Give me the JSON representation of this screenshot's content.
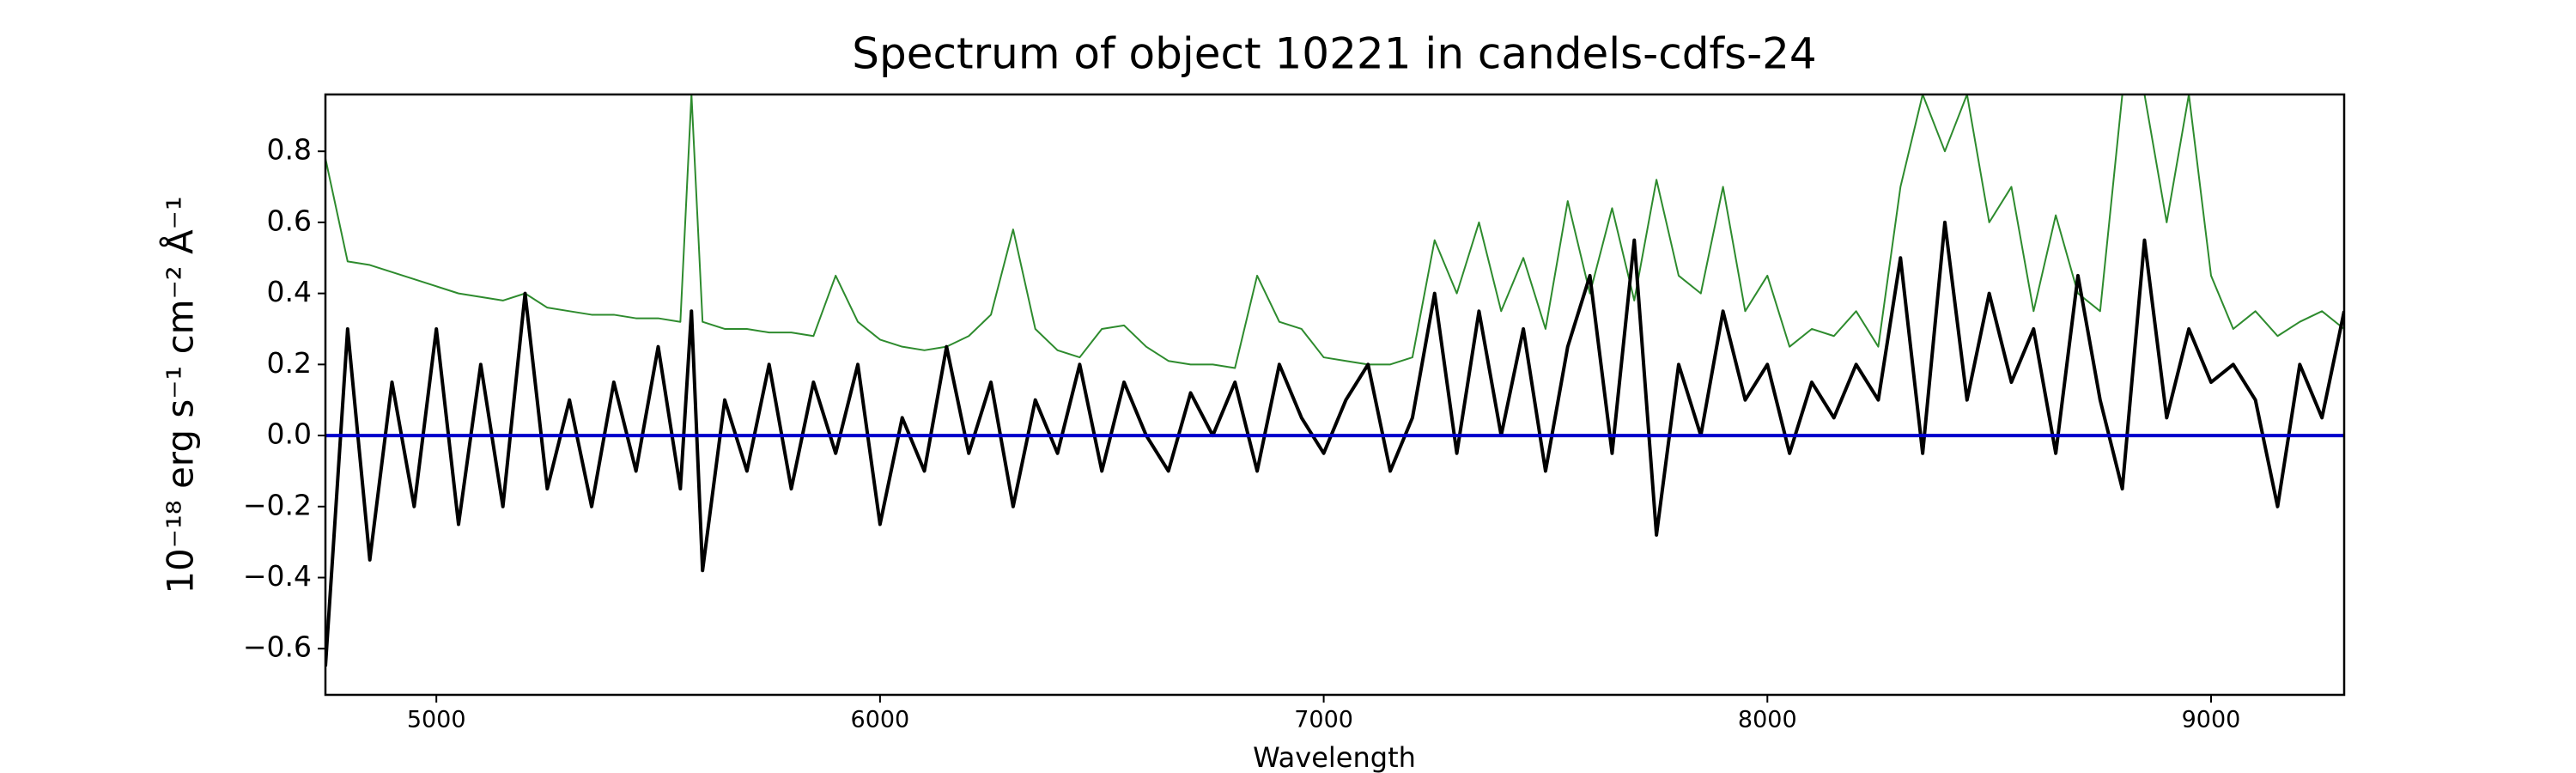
{
  "chart_data": {
    "type": "line",
    "title": "Spectrum of object 10221 in candels-cdfs-24",
    "xlabel": "Wavelength",
    "ylabel": "10⁻¹⁸ erg s⁻¹ cm⁻² Å⁻¹",
    "x": [
      4750,
      4800,
      4850,
      4900,
      4950,
      5000,
      5050,
      5100,
      5150,
      5200,
      5250,
      5300,
      5350,
      5400,
      5450,
      5500,
      5550,
      5575,
      5600,
      5650,
      5700,
      5750,
      5800,
      5850,
      5900,
      5950,
      6000,
      6050,
      6100,
      6150,
      6200,
      6250,
      6300,
      6350,
      6400,
      6450,
      6500,
      6550,
      6600,
      6650,
      6700,
      6750,
      6800,
      6850,
      6900,
      6950,
      7000,
      7050,
      7100,
      7150,
      7200,
      7250,
      7300,
      7350,
      7400,
      7450,
      7500,
      7550,
      7600,
      7650,
      7700,
      7750,
      7800,
      7850,
      7900,
      7950,
      8000,
      8050,
      8100,
      8150,
      8200,
      8250,
      8300,
      8350,
      8400,
      8450,
      8500,
      8550,
      8600,
      8650,
      8700,
      8750,
      8800,
      8850,
      8900,
      8950,
      9000,
      9050,
      9100,
      9150,
      9200,
      9250,
      9300
    ],
    "series": [
      {
        "color": "#2e8b2e",
        "width": 2,
        "values": [
          0.78,
          0.49,
          0.48,
          0.46,
          0.44,
          0.42,
          0.4,
          0.39,
          0.38,
          0.4,
          0.36,
          0.35,
          0.34,
          0.34,
          0.33,
          0.33,
          0.32,
          0.96,
          0.32,
          0.3,
          0.3,
          0.29,
          0.29,
          0.28,
          0.45,
          0.32,
          0.27,
          0.25,
          0.24,
          0.25,
          0.28,
          0.34,
          0.58,
          0.3,
          0.24,
          0.22,
          0.3,
          0.31,
          0.25,
          0.21,
          0.2,
          0.2,
          0.19,
          0.45,
          0.32,
          0.3,
          0.22,
          0.21,
          0.2,
          0.2,
          0.22,
          0.55,
          0.4,
          0.6,
          0.35,
          0.5,
          0.3,
          0.66,
          0.4,
          0.64,
          0.38,
          0.72,
          0.45,
          0.4,
          0.7,
          0.35,
          0.45,
          0.25,
          0.3,
          0.28,
          0.35,
          0.25,
          0.7,
          0.96,
          0.8,
          0.96,
          0.6,
          0.7,
          0.35,
          0.62,
          0.4,
          0.35,
          0.96,
          0.96,
          0.6,
          0.96,
          0.45,
          0.3,
          0.35,
          0.28,
          0.32,
          0.35,
          0.3
        ]
      },
      {
        "color": "#000000",
        "width": 4,
        "values": [
          -0.65,
          0.3,
          -0.35,
          0.15,
          -0.2,
          0.3,
          -0.25,
          0.2,
          -0.2,
          0.4,
          -0.15,
          0.1,
          -0.2,
          0.15,
          -0.1,
          0.25,
          -0.15,
          0.35,
          -0.38,
          0.1,
          -0.1,
          0.2,
          -0.15,
          0.15,
          -0.05,
          0.2,
          -0.25,
          0.05,
          -0.1,
          0.25,
          -0.05,
          0.15,
          -0.2,
          0.1,
          -0.05,
          0.2,
          -0.1,
          0.15,
          0.0,
          -0.1,
          0.12,
          0.0,
          0.15,
          -0.1,
          0.2,
          0.05,
          -0.05,
          0.1,
          0.2,
          -0.1,
          0.05,
          0.4,
          -0.05,
          0.35,
          0.0,
          0.3,
          -0.1,
          0.25,
          0.45,
          -0.05,
          0.55,
          -0.28,
          0.2,
          0.0,
          0.35,
          0.1,
          0.2,
          -0.05,
          0.15,
          0.05,
          0.2,
          0.1,
          0.5,
          -0.05,
          0.6,
          0.1,
          0.4,
          0.15,
          0.3,
          -0.05,
          0.45,
          0.1,
          -0.15,
          0.55,
          0.05,
          0.3,
          0.15,
          0.2,
          0.1,
          -0.2,
          0.2,
          0.05,
          0.35
        ]
      }
    ],
    "hline": {
      "value": 0,
      "color": "#0000cc"
    },
    "xlim": [
      4750,
      9300
    ],
    "ylim": [
      -0.73,
      0.96
    ],
    "xticks": [
      5000,
      6000,
      7000,
      8000,
      9000
    ],
    "yticks": [
      {
        "value": -0.6,
        "label": "−0.6"
      },
      {
        "value": -0.4,
        "label": "−0.4"
      },
      {
        "value": -0.2,
        "label": "−0.2"
      },
      {
        "value": 0,
        "label": "0.0"
      },
      0.2,
      0.4,
      0.6,
      0.8
    ]
  }
}
